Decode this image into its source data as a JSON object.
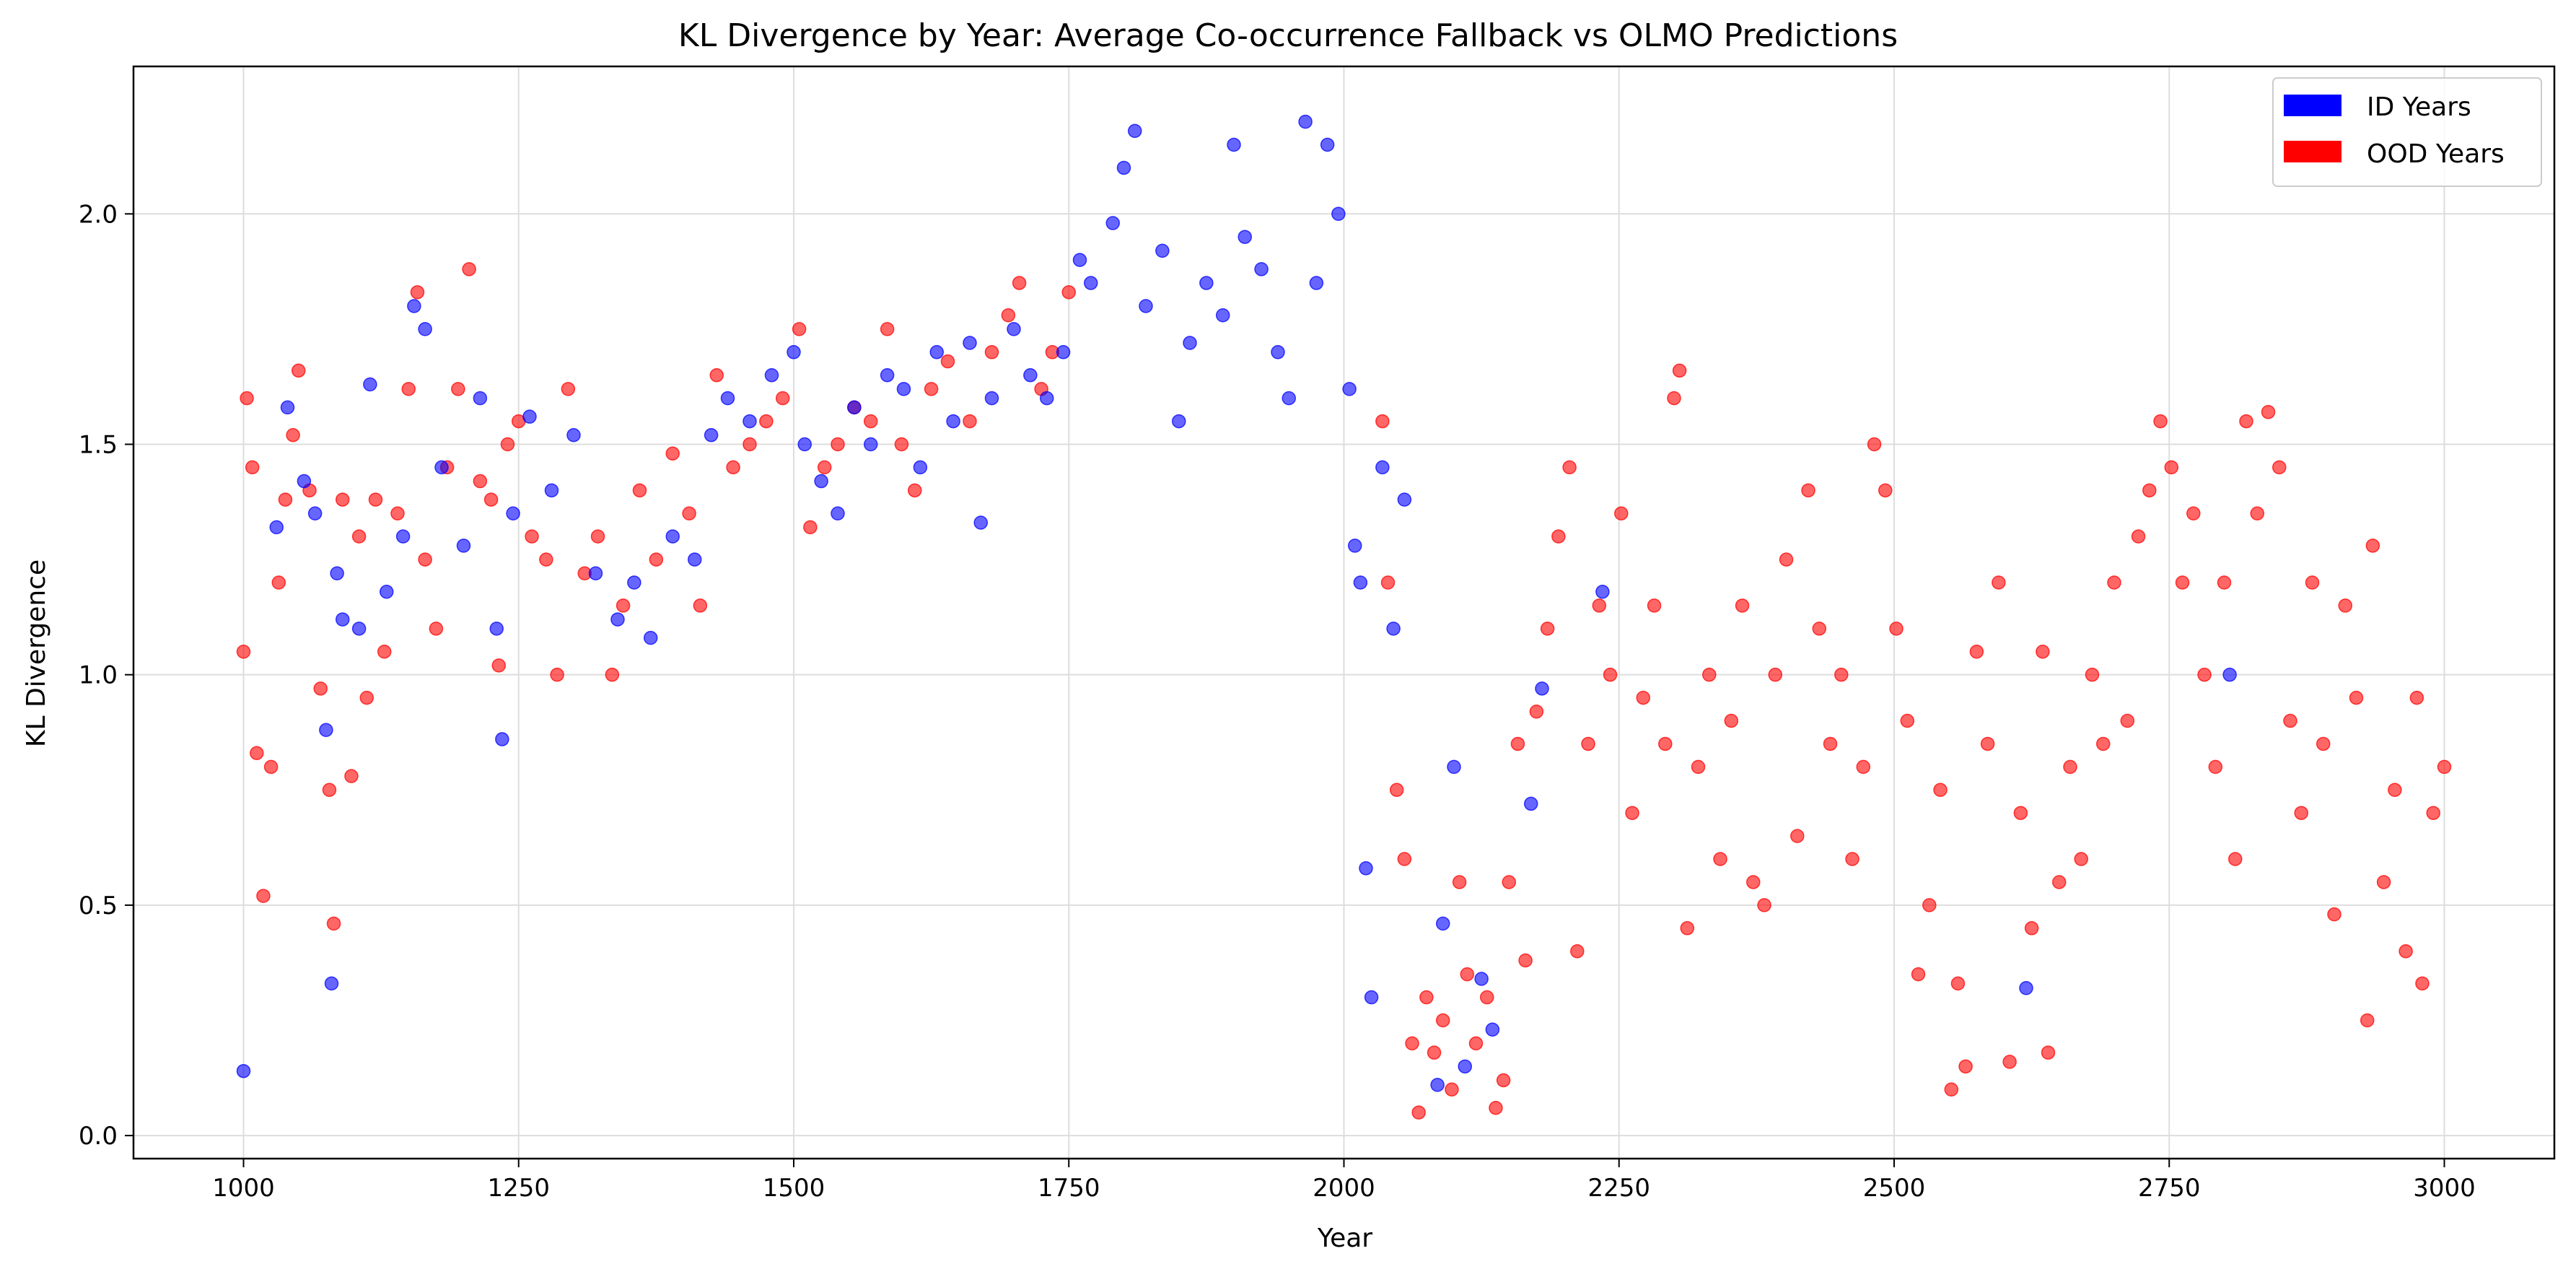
{
  "chart_data": {
    "type": "scatter",
    "title": "KL Divergence by Year: Average Co-occurrence Fallback vs OLMO Predictions",
    "xlabel": "Year",
    "ylabel": "KL Divergence",
    "xlim": [
      900,
      3100
    ],
    "ylim": [
      -0.05,
      2.32
    ],
    "xticks": [
      1000,
      1250,
      1500,
      1750,
      2000,
      2250,
      2500,
      2750,
      3000
    ],
    "yticks": [
      0.0,
      0.5,
      1.0,
      1.5,
      2.0
    ],
    "ytick_labels": [
      "0.0",
      "0.5",
      "1.0",
      "1.5",
      "2.0"
    ],
    "grid": true,
    "legend_position": "top-right",
    "series": [
      {
        "name": "ID Years",
        "color": "#0000ff",
        "points": [
          [
            1000,
            0.14
          ],
          [
            1030,
            1.32
          ],
          [
            1040,
            1.58
          ],
          [
            1055,
            1.42
          ],
          [
            1065,
            1.35
          ],
          [
            1075,
            0.88
          ],
          [
            1080,
            0.33
          ],
          [
            1085,
            1.22
          ],
          [
            1090,
            1.12
          ],
          [
            1105,
            1.1
          ],
          [
            1115,
            1.63
          ],
          [
            1130,
            1.18
          ],
          [
            1145,
            1.3
          ],
          [
            1155,
            1.8
          ],
          [
            1165,
            1.75
          ],
          [
            1180,
            1.45
          ],
          [
            1200,
            1.28
          ],
          [
            1215,
            1.6
          ],
          [
            1230,
            1.1
          ],
          [
            1235,
            0.86
          ],
          [
            1245,
            1.35
          ],
          [
            1260,
            1.56
          ],
          [
            1280,
            1.4
          ],
          [
            1300,
            1.52
          ],
          [
            1320,
            1.22
          ],
          [
            1340,
            1.12
          ],
          [
            1355,
            1.2
          ],
          [
            1370,
            1.08
          ],
          [
            1390,
            1.3
          ],
          [
            1410,
            1.25
          ],
          [
            1425,
            1.52
          ],
          [
            1440,
            1.6
          ],
          [
            1460,
            1.55
          ],
          [
            1480,
            1.65
          ],
          [
            1500,
            1.7
          ],
          [
            1510,
            1.5
          ],
          [
            1525,
            1.42
          ],
          [
            1540,
            1.35
          ],
          [
            1555,
            1.58
          ],
          [
            1570,
            1.5
          ],
          [
            1585,
            1.65
          ],
          [
            1600,
            1.62
          ],
          [
            1615,
            1.45
          ],
          [
            1630,
            1.7
          ],
          [
            1645,
            1.55
          ],
          [
            1660,
            1.72
          ],
          [
            1670,
            1.33
          ],
          [
            1680,
            1.6
          ],
          [
            1700,
            1.75
          ],
          [
            1715,
            1.65
          ],
          [
            1730,
            1.6
          ],
          [
            1745,
            1.7
          ],
          [
            1760,
            1.9
          ],
          [
            1770,
            1.85
          ],
          [
            1790,
            1.98
          ],
          [
            1800,
            2.1
          ],
          [
            1810,
            2.18
          ],
          [
            1820,
            1.8
          ],
          [
            1835,
            1.92
          ],
          [
            1850,
            1.55
          ],
          [
            1860,
            1.72
          ],
          [
            1875,
            1.85
          ],
          [
            1890,
            1.78
          ],
          [
            1900,
            2.15
          ],
          [
            1910,
            1.95
          ],
          [
            1925,
            1.88
          ],
          [
            1940,
            1.7
          ],
          [
            1950,
            1.6
          ],
          [
            1965,
            2.2
          ],
          [
            1975,
            1.85
          ],
          [
            1985,
            2.15
          ],
          [
            1995,
            2.0
          ],
          [
            2005,
            1.62
          ],
          [
            2010,
            1.28
          ],
          [
            2015,
            1.2
          ],
          [
            2020,
            0.58
          ],
          [
            2025,
            0.3
          ],
          [
            2035,
            1.45
          ],
          [
            2045,
            1.1
          ],
          [
            2055,
            1.38
          ],
          [
            2085,
            0.11
          ],
          [
            2090,
            0.46
          ],
          [
            2100,
            0.8
          ],
          [
            2110,
            0.15
          ],
          [
            2125,
            0.34
          ],
          [
            2135,
            0.23
          ],
          [
            2170,
            0.72
          ],
          [
            2180,
            0.97
          ],
          [
            2235,
            1.18
          ],
          [
            2620,
            0.32
          ],
          [
            2805,
            1.0
          ]
        ]
      },
      {
        "name": "OOD Years",
        "color": "#ff0000",
        "points": [
          [
            1000,
            1.05
          ],
          [
            1003,
            1.6
          ],
          [
            1008,
            1.45
          ],
          [
            1012,
            0.83
          ],
          [
            1018,
            0.52
          ],
          [
            1025,
            0.8
          ],
          [
            1032,
            1.2
          ],
          [
            1038,
            1.38
          ],
          [
            1045,
            1.52
          ],
          [
            1050,
            1.66
          ],
          [
            1060,
            1.4
          ],
          [
            1070,
            0.97
          ],
          [
            1078,
            0.75
          ],
          [
            1082,
            0.46
          ],
          [
            1090,
            1.38
          ],
          [
            1098,
            0.78
          ],
          [
            1105,
            1.3
          ],
          [
            1112,
            0.95
          ],
          [
            1120,
            1.38
          ],
          [
            1128,
            1.05
          ],
          [
            1140,
            1.35
          ],
          [
            1150,
            1.62
          ],
          [
            1158,
            1.83
          ],
          [
            1165,
            1.25
          ],
          [
            1175,
            1.1
          ],
          [
            1185,
            1.45
          ],
          [
            1195,
            1.62
          ],
          [
            1205,
            1.88
          ],
          [
            1215,
            1.42
          ],
          [
            1225,
            1.38
          ],
          [
            1232,
            1.02
          ],
          [
            1240,
            1.5
          ],
          [
            1250,
            1.55
          ],
          [
            1262,
            1.3
          ],
          [
            1275,
            1.25
          ],
          [
            1285,
            1.0
          ],
          [
            1295,
            1.62
          ],
          [
            1310,
            1.22
          ],
          [
            1322,
            1.3
          ],
          [
            1335,
            1.0
          ],
          [
            1345,
            1.15
          ],
          [
            1360,
            1.4
          ],
          [
            1375,
            1.25
          ],
          [
            1390,
            1.48
          ],
          [
            1405,
            1.35
          ],
          [
            1415,
            1.15
          ],
          [
            1430,
            1.65
          ],
          [
            1445,
            1.45
          ],
          [
            1460,
            1.5
          ],
          [
            1475,
            1.55
          ],
          [
            1490,
            1.6
          ],
          [
            1505,
            1.75
          ],
          [
            1515,
            1.32
          ],
          [
            1528,
            1.45
          ],
          [
            1540,
            1.5
          ],
          [
            1555,
            1.58
          ],
          [
            1570,
            1.55
          ],
          [
            1585,
            1.75
          ],
          [
            1598,
            1.5
          ],
          [
            1610,
            1.4
          ],
          [
            1625,
            1.62
          ],
          [
            1640,
            1.68
          ],
          [
            1660,
            1.55
          ],
          [
            1680,
            1.7
          ],
          [
            1695,
            1.78
          ],
          [
            1705,
            1.85
          ],
          [
            1725,
            1.62
          ],
          [
            1735,
            1.7
          ],
          [
            1750,
            1.83
          ],
          [
            2035,
            1.55
          ],
          [
            2040,
            1.2
          ],
          [
            2048,
            0.75
          ],
          [
            2055,
            0.6
          ],
          [
            2062,
            0.2
          ],
          [
            2068,
            0.05
          ],
          [
            2075,
            0.3
          ],
          [
            2082,
            0.18
          ],
          [
            2090,
            0.25
          ],
          [
            2098,
            0.1
          ],
          [
            2105,
            0.55
          ],
          [
            2112,
            0.35
          ],
          [
            2120,
            0.2
          ],
          [
            2130,
            0.3
          ],
          [
            2138,
            0.06
          ],
          [
            2145,
            0.12
          ],
          [
            2150,
            0.55
          ],
          [
            2158,
            0.85
          ],
          [
            2165,
            0.38
          ],
          [
            2175,
            0.92
          ],
          [
            2185,
            1.1
          ],
          [
            2195,
            1.3
          ],
          [
            2205,
            1.45
          ],
          [
            2212,
            0.4
          ],
          [
            2222,
            0.85
          ],
          [
            2232,
            1.15
          ],
          [
            2242,
            1.0
          ],
          [
            2252,
            1.35
          ],
          [
            2262,
            0.7
          ],
          [
            2272,
            0.95
          ],
          [
            2282,
            1.15
          ],
          [
            2292,
            0.85
          ],
          [
            2300,
            1.6
          ],
          [
            2305,
            1.66
          ],
          [
            2312,
            0.45
          ],
          [
            2322,
            0.8
          ],
          [
            2332,
            1.0
          ],
          [
            2342,
            0.6
          ],
          [
            2352,
            0.9
          ],
          [
            2362,
            1.15
          ],
          [
            2372,
            0.55
          ],
          [
            2382,
            0.5
          ],
          [
            2392,
            1.0
          ],
          [
            2402,
            1.25
          ],
          [
            2412,
            0.65
          ],
          [
            2422,
            1.4
          ],
          [
            2432,
            1.1
          ],
          [
            2442,
            0.85
          ],
          [
            2452,
            1.0
          ],
          [
            2462,
            0.6
          ],
          [
            2472,
            0.8
          ],
          [
            2482,
            1.5
          ],
          [
            2492,
            1.4
          ],
          [
            2502,
            1.1
          ],
          [
            2512,
            0.9
          ],
          [
            2522,
            0.35
          ],
          [
            2532,
            0.5
          ],
          [
            2542,
            0.75
          ],
          [
            2552,
            0.1
          ],
          [
            2558,
            0.33
          ],
          [
            2565,
            0.15
          ],
          [
            2575,
            1.05
          ],
          [
            2585,
            0.85
          ],
          [
            2595,
            1.2
          ],
          [
            2605,
            0.16
          ],
          [
            2615,
            0.7
          ],
          [
            2625,
            0.45
          ],
          [
            2635,
            1.05
          ],
          [
            2640,
            0.18
          ],
          [
            2650,
            0.55
          ],
          [
            2660,
            0.8
          ],
          [
            2670,
            0.6
          ],
          [
            2680,
            1.0
          ],
          [
            2690,
            0.85
          ],
          [
            2700,
            1.2
          ],
          [
            2712,
            0.9
          ],
          [
            2722,
            1.3
          ],
          [
            2732,
            1.4
          ],
          [
            2742,
            1.55
          ],
          [
            2752,
            1.45
          ],
          [
            2762,
            1.2
          ],
          [
            2772,
            1.35
          ],
          [
            2782,
            1.0
          ],
          [
            2792,
            0.8
          ],
          [
            2800,
            1.2
          ],
          [
            2810,
            0.6
          ],
          [
            2820,
            1.55
          ],
          [
            2830,
            1.35
          ],
          [
            2840,
            1.57
          ],
          [
            2850,
            1.45
          ],
          [
            2860,
            0.9
          ],
          [
            2870,
            0.7
          ],
          [
            2880,
            1.2
          ],
          [
            2890,
            0.85
          ],
          [
            2900,
            0.48
          ],
          [
            2910,
            1.15
          ],
          [
            2920,
            0.95
          ],
          [
            2930,
            0.25
          ],
          [
            2935,
            1.28
          ],
          [
            2945,
            0.55
          ],
          [
            2955,
            0.75
          ],
          [
            2965,
            0.4
          ],
          [
            2975,
            0.95
          ],
          [
            2980,
            0.33
          ],
          [
            2990,
            0.7
          ],
          [
            3000,
            0.8
          ]
        ]
      }
    ]
  }
}
